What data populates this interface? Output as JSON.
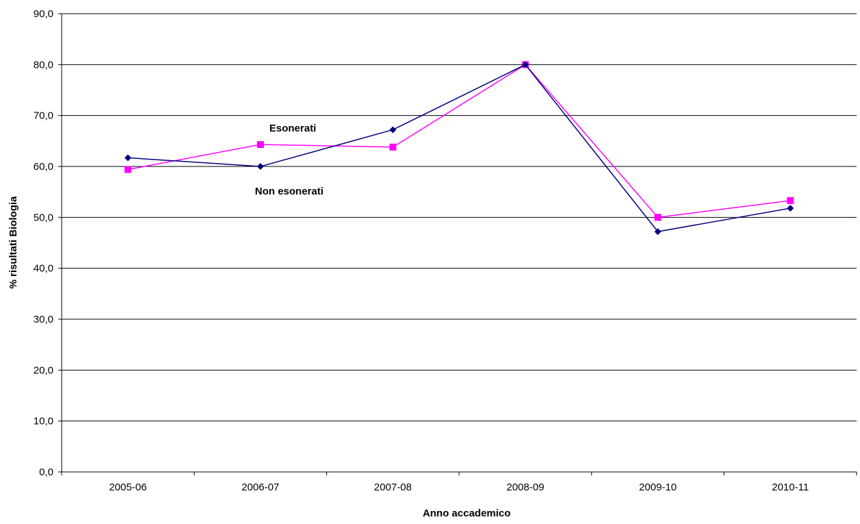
{
  "chart_data": {
    "type": "line",
    "title": "",
    "xlabel": "Anno accademico",
    "ylabel": "% risultati Biologia",
    "categories": [
      "2005-06",
      "2006-07",
      "2007-08",
      "2008-09",
      "2009-10",
      "2010-11"
    ],
    "ylim": [
      0,
      90
    ],
    "yticks": [
      0,
      10,
      20,
      30,
      40,
      50,
      60,
      70,
      80,
      90
    ],
    "ytick_labels": [
      "0,0",
      "10,0",
      "20,0",
      "30,0",
      "40,0",
      "50,0",
      "60,0",
      "70,0",
      "80,0",
      "90,0"
    ],
    "grid": "horizontal",
    "legend": "none",
    "series": [
      {
        "name": "Non esonerati",
        "color": "#000080",
        "marker": "diamond",
        "values": [
          61.7,
          60.0,
          67.2,
          80.0,
          47.2,
          51.8
        ]
      },
      {
        "name": "Esonerati",
        "color": "#FF00FF",
        "marker": "square",
        "values": [
          59.4,
          64.3,
          63.8,
          80.0,
          50.0,
          53.3
        ]
      }
    ],
    "annotations": [
      {
        "text": "Esonerati"
      },
      {
        "text": "Non esonerati"
      }
    ]
  }
}
